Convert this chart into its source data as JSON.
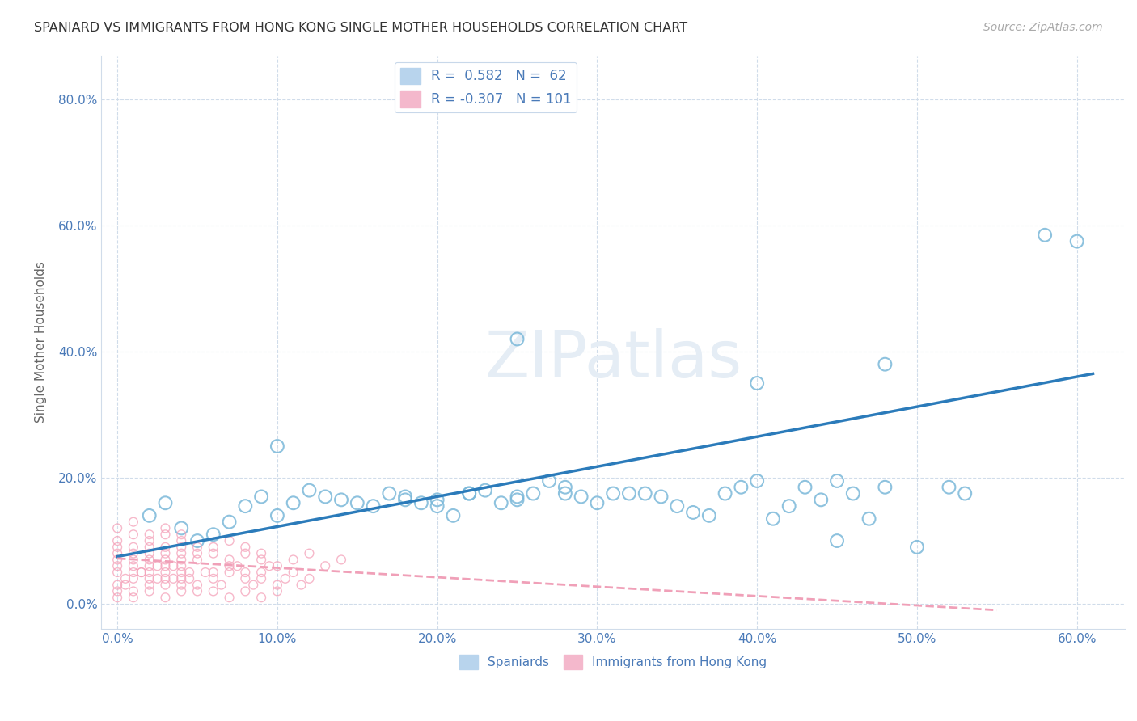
{
  "title": "SPANIARD VS IMMIGRANTS FROM HONG KONG SINGLE MOTHER HOUSEHOLDS CORRELATION CHART",
  "source": "Source: ZipAtlas.com",
  "xlabel_ticks": [
    "0.0%",
    "10.0%",
    "20.0%",
    "30.0%",
    "40.0%",
    "50.0%",
    "60.0%"
  ],
  "ylabel_ticks": [
    "0.0%",
    "20.0%",
    "40.0%",
    "60.0%",
    "80.0%"
  ],
  "xlabel_values": [
    0,
    0.1,
    0.2,
    0.3,
    0.4,
    0.5,
    0.6
  ],
  "ylabel_values": [
    0,
    0.2,
    0.4,
    0.6,
    0.8
  ],
  "xlim": [
    -0.01,
    0.63
  ],
  "ylim": [
    -0.04,
    0.87
  ],
  "ylabel": "Single Mother Households",
  "spaniard_color": "#7ab8d9",
  "hk_color": "#f4a0b8",
  "spaniard_line_color": "#2b7bba",
  "hk_line_color": "#f0a0b8",
  "watermark_color": "#e5edf5",
  "background_color": "#ffffff",
  "grid_color": "#d0dcea",
  "tick_color": "#4a7ab8",
  "spaniard_scatter": [
    [
      0.02,
      0.14
    ],
    [
      0.03,
      0.16
    ],
    [
      0.04,
      0.12
    ],
    [
      0.05,
      0.1
    ],
    [
      0.06,
      0.11
    ],
    [
      0.07,
      0.13
    ],
    [
      0.08,
      0.155
    ],
    [
      0.09,
      0.17
    ],
    [
      0.1,
      0.14
    ],
    [
      0.11,
      0.16
    ],
    [
      0.12,
      0.18
    ],
    [
      0.13,
      0.17
    ],
    [
      0.14,
      0.165
    ],
    [
      0.15,
      0.16
    ],
    [
      0.16,
      0.155
    ],
    [
      0.17,
      0.175
    ],
    [
      0.18,
      0.17
    ],
    [
      0.19,
      0.16
    ],
    [
      0.2,
      0.155
    ],
    [
      0.21,
      0.14
    ],
    [
      0.22,
      0.175
    ],
    [
      0.23,
      0.18
    ],
    [
      0.24,
      0.16
    ],
    [
      0.25,
      0.17
    ],
    [
      0.26,
      0.175
    ],
    [
      0.27,
      0.195
    ],
    [
      0.28,
      0.185
    ],
    [
      0.29,
      0.17
    ],
    [
      0.3,
      0.16
    ],
    [
      0.31,
      0.175
    ],
    [
      0.1,
      0.25
    ],
    [
      0.33,
      0.175
    ],
    [
      0.34,
      0.17
    ],
    [
      0.35,
      0.155
    ],
    [
      0.36,
      0.145
    ],
    [
      0.37,
      0.14
    ],
    [
      0.38,
      0.175
    ],
    [
      0.39,
      0.185
    ],
    [
      0.4,
      0.195
    ],
    [
      0.41,
      0.135
    ],
    [
      0.42,
      0.155
    ],
    [
      0.43,
      0.185
    ],
    [
      0.44,
      0.165
    ],
    [
      0.45,
      0.1
    ],
    [
      0.46,
      0.175
    ],
    [
      0.47,
      0.135
    ],
    [
      0.48,
      0.185
    ],
    [
      0.5,
      0.09
    ],
    [
      0.52,
      0.185
    ],
    [
      0.53,
      0.175
    ],
    [
      0.28,
      0.175
    ],
    [
      0.32,
      0.175
    ],
    [
      0.22,
      0.175
    ],
    [
      0.25,
      0.165
    ],
    [
      0.2,
      0.165
    ],
    [
      0.18,
      0.165
    ],
    [
      0.25,
      0.42
    ],
    [
      0.4,
      0.35
    ],
    [
      0.48,
      0.38
    ],
    [
      0.45,
      0.195
    ],
    [
      0.58,
      0.585
    ],
    [
      0.6,
      0.575
    ]
  ],
  "hk_scatter": [
    [
      0.0,
      0.02
    ],
    [
      0.005,
      0.03
    ],
    [
      0.01,
      0.04
    ],
    [
      0.015,
      0.05
    ],
    [
      0.02,
      0.03
    ],
    [
      0.025,
      0.04
    ],
    [
      0.03,
      0.05
    ],
    [
      0.035,
      0.06
    ],
    [
      0.04,
      0.03
    ],
    [
      0.045,
      0.04
    ],
    [
      0.05,
      0.02
    ],
    [
      0.055,
      0.05
    ],
    [
      0.06,
      0.04
    ],
    [
      0.065,
      0.03
    ],
    [
      0.07,
      0.05
    ],
    [
      0.075,
      0.06
    ],
    [
      0.08,
      0.04
    ],
    [
      0.085,
      0.03
    ],
    [
      0.09,
      0.05
    ],
    [
      0.095,
      0.06
    ],
    [
      0.1,
      0.03
    ],
    [
      0.105,
      0.04
    ],
    [
      0.11,
      0.05
    ],
    [
      0.115,
      0.03
    ],
    [
      0.12,
      0.04
    ],
    [
      0.0,
      0.05
    ],
    [
      0.01,
      0.06
    ],
    [
      0.02,
      0.05
    ],
    [
      0.03,
      0.04
    ],
    [
      0.04,
      0.06
    ],
    [
      0.05,
      0.07
    ],
    [
      0.06,
      0.05
    ],
    [
      0.07,
      0.06
    ],
    [
      0.08,
      0.05
    ],
    [
      0.09,
      0.04
    ],
    [
      0.0,
      0.03
    ],
    [
      0.01,
      0.02
    ],
    [
      0.02,
      0.06
    ],
    [
      0.03,
      0.07
    ],
    [
      0.04,
      0.05
    ],
    [
      0.005,
      0.04
    ],
    [
      0.015,
      0.05
    ],
    [
      0.025,
      0.06
    ],
    [
      0.035,
      0.04
    ],
    [
      0.045,
      0.05
    ],
    [
      0.0,
      0.07
    ],
    [
      0.01,
      0.08
    ],
    [
      0.02,
      0.09
    ],
    [
      0.03,
      0.08
    ],
    [
      0.04,
      0.07
    ],
    [
      0.0,
      0.08
    ],
    [
      0.01,
      0.09
    ],
    [
      0.02,
      0.07
    ],
    [
      0.03,
      0.06
    ],
    [
      0.04,
      0.08
    ],
    [
      0.0,
      0.1
    ],
    [
      0.01,
      0.11
    ],
    [
      0.02,
      0.08
    ],
    [
      0.03,
      0.09
    ],
    [
      0.04,
      0.1
    ],
    [
      0.0,
      0.09
    ],
    [
      0.01,
      0.07
    ],
    [
      0.02,
      0.1
    ],
    [
      0.03,
      0.11
    ],
    [
      0.04,
      0.09
    ],
    [
      0.0,
      0.06
    ],
    [
      0.01,
      0.05
    ],
    [
      0.02,
      0.04
    ],
    [
      0.03,
      0.03
    ],
    [
      0.04,
      0.04
    ],
    [
      0.05,
      0.08
    ],
    [
      0.06,
      0.09
    ],
    [
      0.07,
      0.1
    ],
    [
      0.08,
      0.08
    ],
    [
      0.09,
      0.07
    ],
    [
      0.1,
      0.06
    ],
    [
      0.11,
      0.07
    ],
    [
      0.12,
      0.08
    ],
    [
      0.13,
      0.06
    ],
    [
      0.14,
      0.07
    ],
    [
      0.05,
      0.09
    ],
    [
      0.06,
      0.08
    ],
    [
      0.07,
      0.07
    ],
    [
      0.08,
      0.09
    ],
    [
      0.09,
      0.08
    ],
    [
      0.0,
      0.12
    ],
    [
      0.01,
      0.13
    ],
    [
      0.02,
      0.11
    ],
    [
      0.03,
      0.12
    ],
    [
      0.04,
      0.11
    ],
    [
      0.0,
      0.01
    ],
    [
      0.01,
      0.01
    ],
    [
      0.02,
      0.02
    ],
    [
      0.03,
      0.01
    ],
    [
      0.04,
      0.02
    ],
    [
      0.05,
      0.03
    ],
    [
      0.06,
      0.02
    ],
    [
      0.07,
      0.01
    ],
    [
      0.08,
      0.02
    ],
    [
      0.09,
      0.01
    ],
    [
      0.1,
      0.02
    ]
  ],
  "spaniard_trend_x": [
    0.0,
    0.61
  ],
  "spaniard_trend_y": [
    0.075,
    0.365
  ],
  "hk_trend_x": [
    0.0,
    0.55
  ],
  "hk_trend_y": [
    0.072,
    -0.01
  ]
}
